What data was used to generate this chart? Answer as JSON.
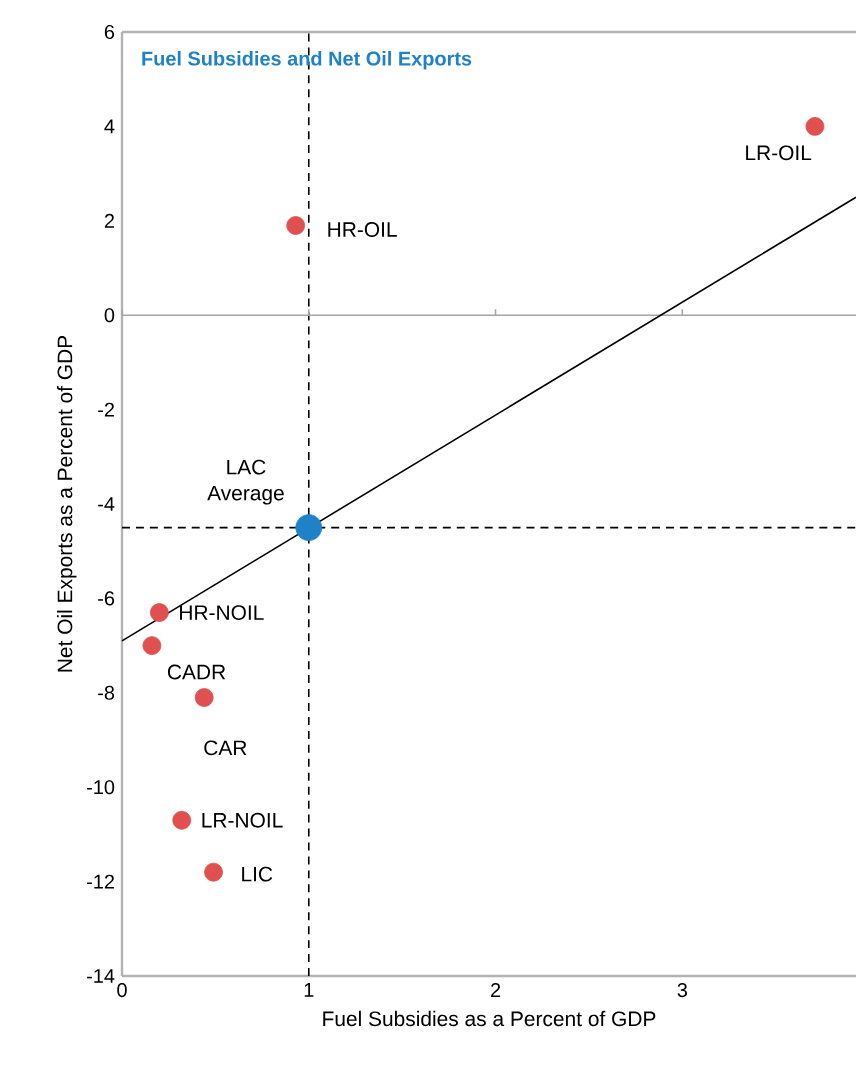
{
  "chart_data": {
    "type": "scatter",
    "title": "Fuel Subsidies and Net Oil Exports",
    "xlabel": "Fuel Subsidies as a Percent of GDP",
    "ylabel": "Net Oil Exports as a Percent of GDP",
    "xlim": [
      0,
      3.93
    ],
    "xticks": [
      0,
      1,
      2,
      3
    ],
    "ylim": [
      -14,
      6
    ],
    "yticks": [
      -14,
      -12,
      -10,
      -8,
      -6,
      -4,
      -2,
      0,
      2,
      4,
      6
    ],
    "grid": false,
    "series": [
      {
        "name": "LR-OIL",
        "color": "#e05050",
        "x": [
          3.71
        ],
        "values": [
          4.0
        ]
      },
      {
        "name": "HR-OIL",
        "color": "#e05050",
        "x": [
          0.93
        ],
        "values": [
          1.9
        ]
      },
      {
        "name": "LAC Average",
        "color": "#1f82c8",
        "x": [
          1.0
        ],
        "values": [
          -4.5
        ]
      },
      {
        "name": "HR-NOIL",
        "color": "#e05050",
        "x": [
          0.2
        ],
        "values": [
          -6.3
        ]
      },
      {
        "name": "CADR",
        "color": "#e05050",
        "x": [
          0.16
        ],
        "values": [
          -7.0
        ]
      },
      {
        "name": "CAR",
        "color": "#e05050",
        "x": [
          0.44
        ],
        "values": [
          -8.1
        ]
      },
      {
        "name": "LR-NOIL",
        "color": "#e05050",
        "x": [
          0.32
        ],
        "values": [
          -10.7
        ]
      },
      {
        "name": "LIC",
        "color": "#e05050",
        "x": [
          0.49
        ],
        "values": [
          -11.8
        ]
      },
      {
        "type": "line",
        "color": "#000000",
        "x": [
          0,
          3.93
        ],
        "values": [
          -6.9,
          2.5
        ],
        "line_style": "solid",
        "marker": "none"
      }
    ],
    "ref_lines": [
      {
        "axis": "x",
        "value": 1,
        "color": "#000000",
        "line_style": "dashed"
      },
      {
        "axis": "y",
        "value": -4.5,
        "color": "#000000",
        "line_style": "dashed"
      },
      {
        "axis": "y",
        "value": 0,
        "color": "#a6a6a6",
        "line_style": "solid"
      }
    ]
  }
}
